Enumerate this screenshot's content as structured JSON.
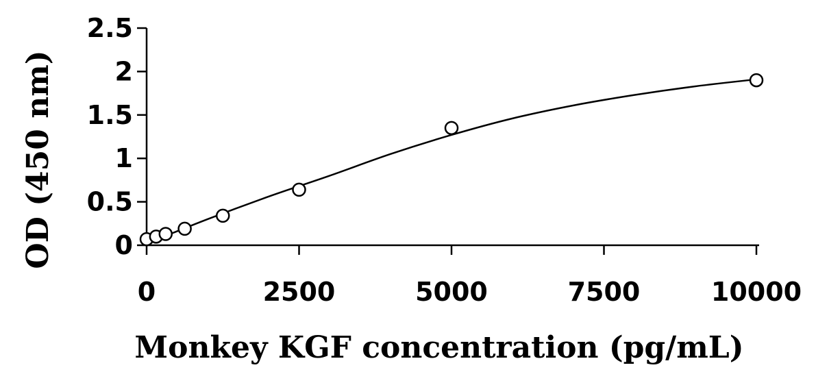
{
  "chart_data": {
    "type": "scatter",
    "title": "",
    "xlabel": "Monkey KGF concentration (pg/mL)",
    "ylabel": "OD (450 nm)",
    "xlim": [
      0,
      10000
    ],
    "ylim": [
      0,
      2.5
    ],
    "x_ticks": [
      0,
      2500,
      5000,
      7500,
      10000
    ],
    "x_tick_labels": [
      "0",
      "2500",
      "5000",
      "7500",
      "10000"
    ],
    "y_ticks": [
      0,
      0.5,
      1,
      1.5,
      2,
      2.5
    ],
    "y_tick_labels": [
      "0",
      "0.5",
      "1",
      "1.5",
      "2",
      "2.5"
    ],
    "grid": false,
    "legend": "none",
    "series": [
      {
        "marker": "open-circle",
        "x": [
          0,
          156,
          312,
          625,
          1250,
          2500,
          5000,
          10000
        ],
        "y": [
          0.07,
          0.1,
          0.13,
          0.19,
          0.34,
          0.64,
          1.35,
          1.9
        ]
      }
    ],
    "fit_curve": {
      "style": "solid-smooth",
      "x": [
        0,
        1000,
        2000,
        3000,
        4000,
        5000,
        6000,
        7000,
        8000,
        9000,
        10000
      ],
      "y": [
        0.02,
        0.3,
        0.56,
        0.8,
        1.05,
        1.27,
        1.46,
        1.61,
        1.73,
        1.83,
        1.91
      ]
    }
  }
}
